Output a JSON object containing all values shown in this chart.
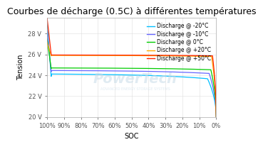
{
  "title": "Courbes de décharge (0.5C) à différentes températures",
  "xlabel": "SOC",
  "ylabel": "Tension",
  "xlim": [
    1.0,
    0.0
  ],
  "ylim": [
    20.0,
    29.5
  ],
  "yticks": [
    20,
    22,
    24,
    26,
    28
  ],
  "ytick_labels": [
    "20 V",
    "22 V",
    "24 V",
    "26 V",
    "28 V"
  ],
  "xticks": [
    1.0,
    0.9,
    0.8,
    0.7,
    0.6,
    0.5,
    0.4,
    0.3,
    0.2,
    0.1,
    0.0
  ],
  "xtick_labels": [
    "100%",
    "90%",
    "80%",
    "70%",
    "60%",
    "50%",
    "40%",
    "30%",
    "20%",
    "10%",
    "0%"
  ],
  "background_color": "#ffffff",
  "grid_color": "#dddddd",
  "series": [
    {
      "label": "Discharge @ -20°C",
      "color": "#00bfff"
    },
    {
      "label": "Discharge @ -10°C",
      "color": "#6666ff"
    },
    {
      "label": "Discharge @ 0°C",
      "color": "#00cc00"
    },
    {
      "label": "Discharge @ +20°C",
      "color": "#ffaa00"
    },
    {
      "label": "Discharge @ +50°C",
      "color": "#ff2200"
    }
  ],
  "series_params": [
    [
      29.0,
      23.7,
      24.15,
      20.0,
      0.975,
      0.052
    ],
    [
      28.2,
      24.2,
      24.48,
      20.0,
      0.975,
      0.042
    ],
    [
      27.5,
      24.55,
      24.72,
      20.0,
      0.975,
      0.032
    ],
    [
      27.2,
      25.82,
      25.92,
      20.0,
      0.975,
      0.028
    ],
    [
      29.5,
      25.88,
      25.96,
      20.0,
      0.975,
      0.022
    ]
  ],
  "logo_text": "PowerTech",
  "logo_sub": "ADVANCED ENERGY STORAGE SYSTEMS",
  "title_fontsize": 9,
  "axis_fontsize": 7,
  "tick_fontsize": 6,
  "legend_fontsize": 5.5
}
